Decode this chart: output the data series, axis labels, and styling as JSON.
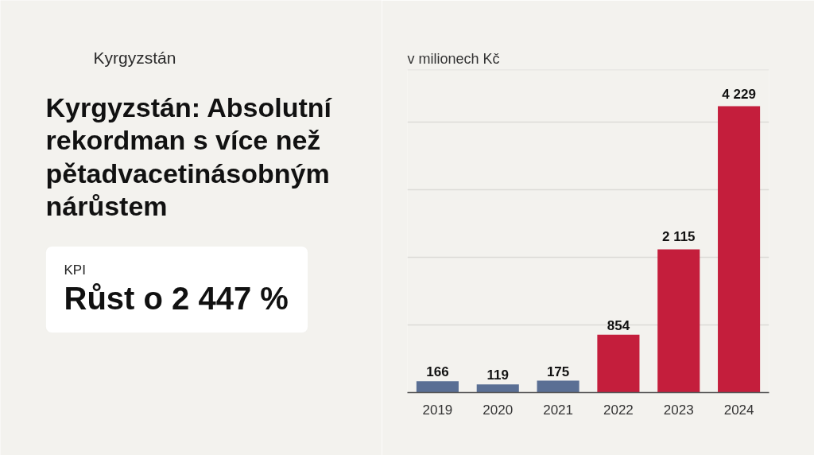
{
  "chart_data": {
    "type": "bar",
    "title": "Kyrgyzstán: Absolutní rekordman s více než pětadvacetinásobným nárůstem",
    "ylabel": "v milionech Kč",
    "annotations": [
      "Kyrgyzstán",
      "KPI",
      "Růst o 2 447 %"
    ],
    "categories": [
      "2019",
      "2020",
      "2021",
      "2022",
      "2023",
      "2024"
    ],
    "values": [
      166,
      119,
      175,
      854,
      2115,
      4229
    ],
    "colors": [
      "#5a6f94",
      "#5a6f94",
      "#5a6f94",
      "#c41e3c",
      "#c41e3c",
      "#c41e3c"
    ],
    "value_labels": [
      "166",
      "119",
      "175",
      "854",
      "2 115",
      "4 229"
    ],
    "ylim": [
      0,
      4770
    ],
    "yticks": [
      {
        "value": 0,
        "label": null
      },
      {
        "value": 1000,
        "label": null
      },
      {
        "value": 2000,
        "label": null
      },
      {
        "value": 3000,
        "label": null
      },
      {
        "value": 4000,
        "label": null
      }
    ],
    "grid": "y",
    "tick_labels": "x"
  }
}
